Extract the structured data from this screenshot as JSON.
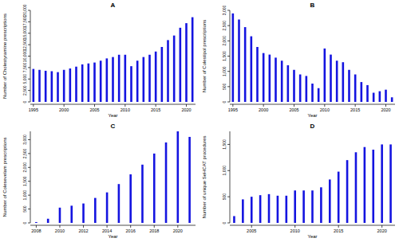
{
  "chart_data": [
    {
      "type": "bar",
      "title": "A",
      "x_label": "Year",
      "y_label": "Number of Cholestyramine prescriptions",
      "color": "#1414e0",
      "x": [
        1995,
        1996,
        1997,
        1998,
        1999,
        2000,
        2001,
        2002,
        2003,
        2004,
        2005,
        2006,
        2007,
        2008,
        2009,
        2010,
        2011,
        2012,
        2013,
        2014,
        2015,
        2016,
        2017,
        2018,
        2019,
        2020,
        2021
      ],
      "values": [
        7200,
        7000,
        6800,
        6700,
        6500,
        7000,
        7300,
        7700,
        8200,
        8400,
        8600,
        9000,
        9500,
        9800,
        10300,
        10300,
        7800,
        9000,
        9800,
        10300,
        11000,
        12000,
        13500,
        14500,
        16200,
        17200,
        18500
      ],
      "xlim": [
        1994.5,
        2021.5
      ],
      "ylim": [
        0,
        20000
      ],
      "xticks": [
        1995,
        2000,
        2005,
        2010,
        2015,
        2020
      ],
      "yticks": [
        0,
        {
          "value": 2500,
          "label": "2,500"
        },
        {
          "value": 5000,
          "label": "5,000"
        },
        {
          "value": 7500,
          "label": "7,500"
        },
        {
          "value": 10000,
          "label": "10,000"
        },
        {
          "value": 12500,
          "label": "12,500"
        },
        {
          "value": 15000,
          "label": "15,000"
        },
        {
          "value": 17500,
          "label": "17,500"
        },
        {
          "value": 20000,
          "label": "20,000"
        }
      ]
    },
    {
      "type": "bar",
      "title": "B",
      "x_label": "Year",
      "y_label": "Number of Colestipol prescriptions",
      "color": "#1414e0",
      "x": [
        1995,
        1996,
        1997,
        1998,
        1999,
        2000,
        2001,
        2002,
        2003,
        2004,
        2005,
        2006,
        2007,
        2008,
        2009,
        2010,
        2011,
        2012,
        2013,
        2014,
        2015,
        2016,
        2017,
        2018,
        2019,
        2020,
        2021
      ],
      "values": [
        2900,
        2700,
        2450,
        2150,
        1800,
        1600,
        1550,
        1450,
        1350,
        1200,
        1050,
        900,
        850,
        600,
        450,
        1750,
        1550,
        1350,
        1300,
        1050,
        900,
        650,
        550,
        300,
        350,
        400,
        150
      ],
      "xlim": [
        1994.5,
        2021.5
      ],
      "ylim": [
        0,
        3000
      ],
      "xticks": [
        1995,
        2000,
        2005,
        2010,
        2015,
        2020
      ],
      "yticks": [
        0,
        500,
        {
          "value": 1000,
          "label": "1,000"
        },
        {
          "value": 1500,
          "label": "1,500"
        },
        {
          "value": 2000,
          "label": "2,000"
        },
        {
          "value": 2500,
          "label": "2,500"
        },
        {
          "value": 3000,
          "label": "3,000"
        }
      ]
    },
    {
      "type": "bar",
      "title": "C",
      "x_label": "Year",
      "y_label": "Number of Colesevelam prescriptions",
      "color": "#1414e0",
      "x": [
        2008,
        2009,
        2010,
        2011,
        2012,
        2013,
        2014,
        2015,
        2016,
        2017,
        2018,
        2019,
        2020,
        2021
      ],
      "values": [
        30,
        150,
        550,
        620,
        700,
        900,
        1100,
        1400,
        1750,
        2100,
        2500,
        2900,
        3300,
        3100
      ],
      "xlim": [
        2007.5,
        2021.5
      ],
      "ylim": [
        0,
        3300
      ],
      "xticks": [
        2008,
        2010,
        2012,
        2014,
        2016,
        2018,
        2020
      ],
      "yticks": [
        0,
        500,
        {
          "value": 1000,
          "label": "1,000"
        },
        {
          "value": 1500,
          "label": "1,500"
        },
        {
          "value": 2000,
          "label": "2,000"
        },
        {
          "value": 2500,
          "label": "2,500"
        },
        {
          "value": 3000,
          "label": "3,000"
        }
      ]
    },
    {
      "type": "bar",
      "title": "D",
      "x_label": "Year",
      "y_label": "Number of unique SeHCAT procedures",
      "color": "#1414e0",
      "x": [
        2003,
        2004,
        2005,
        2006,
        2007,
        2008,
        2009,
        2010,
        2011,
        2012,
        2013,
        2014,
        2015,
        2016,
        2017,
        2018,
        2019,
        2020,
        2021
      ],
      "values": [
        130,
        450,
        500,
        530,
        550,
        520,
        520,
        620,
        620,
        620,
        680,
        830,
        980,
        1200,
        1350,
        1450,
        1400,
        1500,
        1500
      ],
      "xlim": [
        2002.5,
        2021.5
      ],
      "ylim": [
        0,
        1750
      ],
      "xticks": [
        2005,
        2010,
        2015,
        2020
      ],
      "yticks": [
        0,
        500,
        {
          "value": 1000,
          "label": "1,000"
        },
        {
          "value": 1500,
          "label": "1,500"
        }
      ]
    }
  ]
}
